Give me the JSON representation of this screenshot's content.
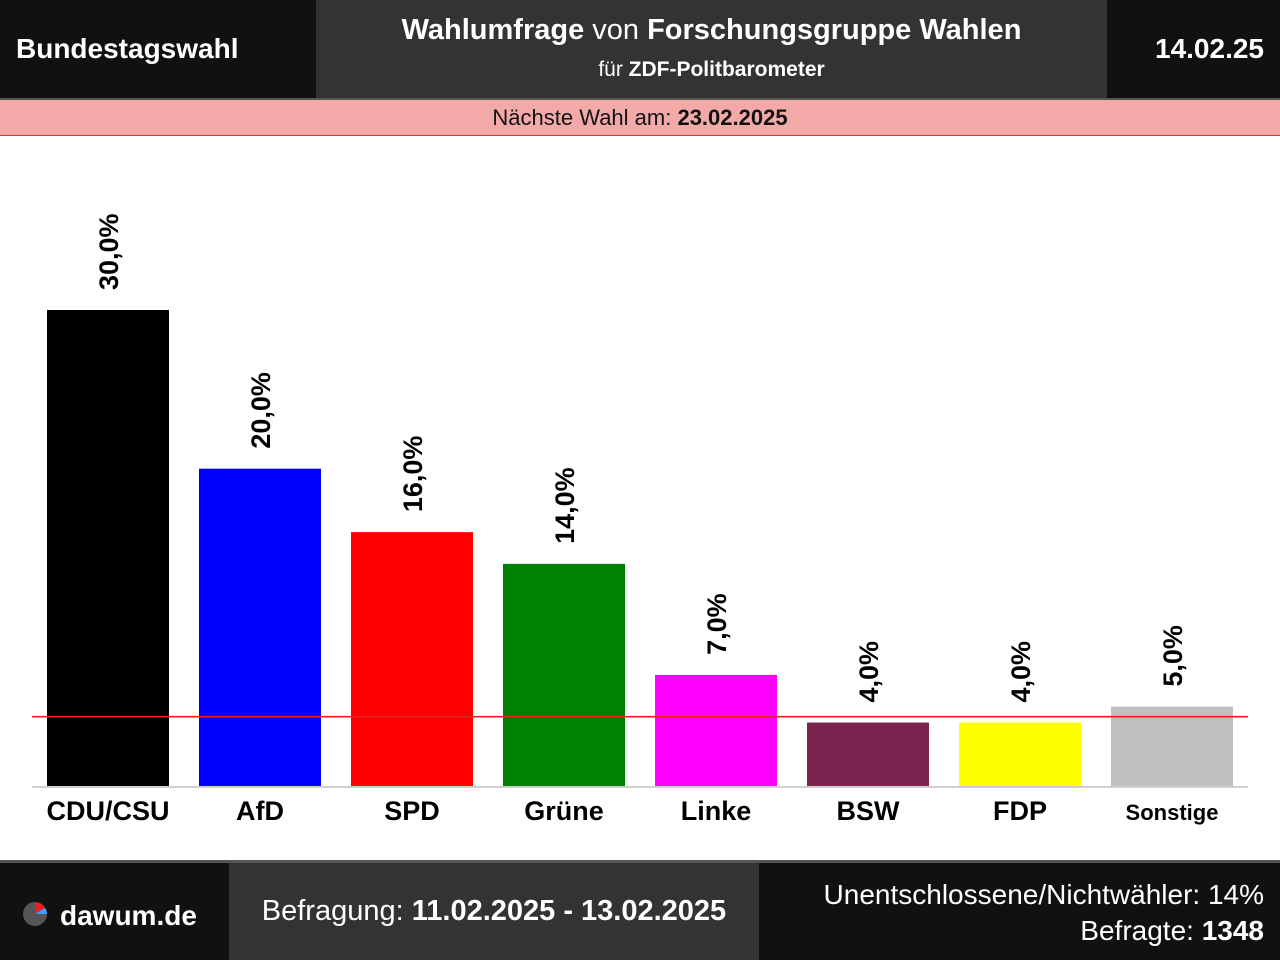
{
  "header": {
    "left": "Bundestagswahl",
    "title_bold1": "Wahlumfrage",
    "title_mid": " von ",
    "title_bold2": "Forschungsgruppe Wahlen",
    "subtitle_pre": "für ",
    "subtitle_bold": "ZDF-Politbarometer",
    "date": "14.02.25"
  },
  "next_election": {
    "label": "Nächste Wahl am: ",
    "date": "23.02.2025"
  },
  "footer": {
    "logo_text": "dawum.de",
    "survey_label": "Befragung: ",
    "survey_range": "11.02.2025 - 13.02.2025",
    "undecided": "Unentschlossene/Nichtwähler: 14%",
    "respondents_label": "Befragte: ",
    "respondents": "1348"
  },
  "colors": {
    "threshold_line": "#e82020"
  },
  "chart_data": {
    "type": "bar",
    "categories": [
      "CDU/CSU",
      "AfD",
      "SPD",
      "Grüne",
      "Linke",
      "BSW",
      "FDP",
      "Sonstige"
    ],
    "values": [
      30.0,
      20.0,
      16.0,
      14.0,
      7.0,
      4.0,
      4.0,
      5.0
    ],
    "value_labels": [
      "30,0%",
      "20,0%",
      "16,0%",
      "14,0%",
      "7,0%",
      "4,0%",
      "4,0%",
      "5,0%"
    ],
    "bar_colors": [
      "#000000",
      "#0000ff",
      "#ff0000",
      "#008000",
      "#ff00ff",
      "#7b2450",
      "#ffff00",
      "#c0c0c0"
    ],
    "threshold": 5.0,
    "ylim": [
      0,
      30.0
    ]
  }
}
